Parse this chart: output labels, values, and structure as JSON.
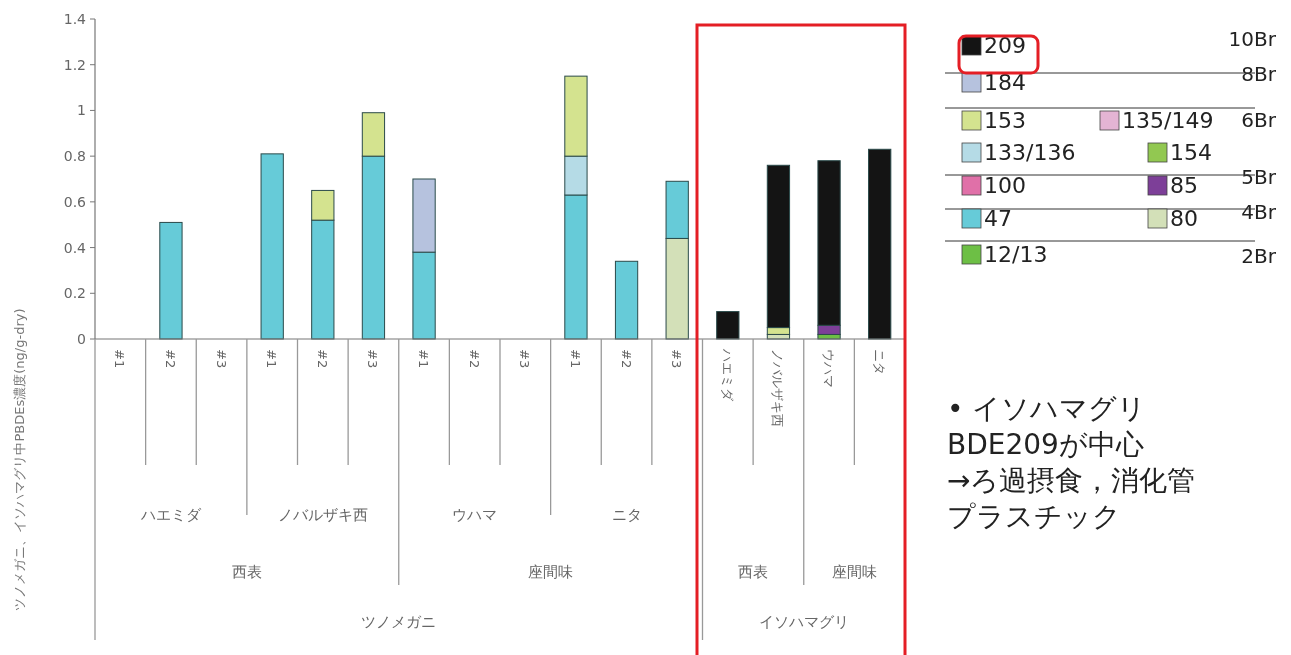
{
  "chart_data": {
    "type": "bar",
    "stacked": true,
    "ylabel": "ツノメガニ、イソハマグリ中PBDEs濃度(ng/g-dry)",
    "categories": [
      "#1",
      "#2",
      "#3",
      "#1",
      "#2",
      "#3",
      "#1",
      "#2",
      "#3",
      "#1",
      "#2",
      "#3",
      "ハエミダ",
      "ノバルザキ西",
      "ウハマ",
      "ニタ"
    ],
    "ylim": [
      0,
      1.4
    ],
    "yticks": [
      0,
      0.2,
      0.4,
      0.6,
      0.8,
      1,
      1.2,
      1.4
    ],
    "grid": false,
    "legend": "right",
    "series": [
      {
        "name": "12/13",
        "color": "#6dbf45",
        "values": [
          null,
          null,
          null,
          null,
          null,
          null,
          null,
          null,
          null,
          null,
          null,
          null,
          null,
          null,
          0.02,
          null
        ]
      },
      {
        "name": "80",
        "color": "#d3e0b8",
        "values": [
          null,
          null,
          null,
          null,
          null,
          null,
          null,
          null,
          null,
          null,
          null,
          0.44,
          null,
          0.02,
          null,
          null
        ]
      },
      {
        "name": "47",
        "color": "#66cbd8",
        "values": [
          null,
          0.51,
          null,
          0.81,
          0.52,
          0.8,
          0.38,
          null,
          null,
          0.63,
          0.34,
          0.25,
          null,
          null,
          null,
          null
        ]
      },
      {
        "name": "85",
        "color": "#7d3f98",
        "values": [
          null,
          null,
          null,
          null,
          null,
          null,
          null,
          null,
          null,
          null,
          null,
          null,
          null,
          null,
          0.04,
          null
        ]
      },
      {
        "name": "100",
        "color": "#e070a8",
        "values": [
          null,
          null,
          null,
          null,
          null,
          null,
          null,
          null,
          null,
          null,
          null,
          null,
          null,
          null,
          null,
          null
        ]
      },
      {
        "name": "154",
        "color": "#92c851",
        "values": [
          null,
          null,
          null,
          null,
          null,
          null,
          null,
          null,
          null,
          null,
          null,
          null,
          null,
          null,
          null,
          null
        ]
      },
      {
        "name": "133/136",
        "color": "#b5dbe6",
        "values": [
          null,
          null,
          null,
          null,
          null,
          null,
          null,
          null,
          null,
          0.17,
          null,
          null,
          null,
          null,
          null,
          null
        ]
      },
      {
        "name": "135/149",
        "color": "#e4b4d4",
        "values": [
          null,
          null,
          null,
          null,
          null,
          null,
          null,
          null,
          null,
          null,
          null,
          null,
          null,
          null,
          null,
          null
        ]
      },
      {
        "name": "153",
        "color": "#d4e38f",
        "values": [
          null,
          null,
          null,
          null,
          0.13,
          0.19,
          null,
          null,
          null,
          0.35,
          null,
          null,
          null,
          0.03,
          null,
          null
        ]
      },
      {
        "name": "184",
        "color": "#b6c2de",
        "values": [
          null,
          null,
          null,
          null,
          null,
          null,
          0.32,
          null,
          null,
          null,
          null,
          null,
          null,
          null,
          null,
          null
        ]
      },
      {
        "name": "209",
        "color": "#141414",
        "values": [
          null,
          null,
          null,
          null,
          null,
          null,
          null,
          null,
          null,
          null,
          null,
          null,
          0.12,
          0.71,
          0.72,
          0.83
        ]
      }
    ],
    "annotations": [
      "ハエミダ",
      "ノバルザキ西",
      "ウハマ",
      "ニタ",
      "西表",
      "座間味",
      "西表",
      "座間味",
      "ツノメガニ",
      "イソハマグリ",
      "10Br",
      "8Br",
      "6Br",
      "5Br",
      "4Br",
      "2Br",
      "• イソハマグリ",
      "BDE209が中心",
      "→ろ過摂食，消化管",
      "プラスチック"
    ]
  }
}
